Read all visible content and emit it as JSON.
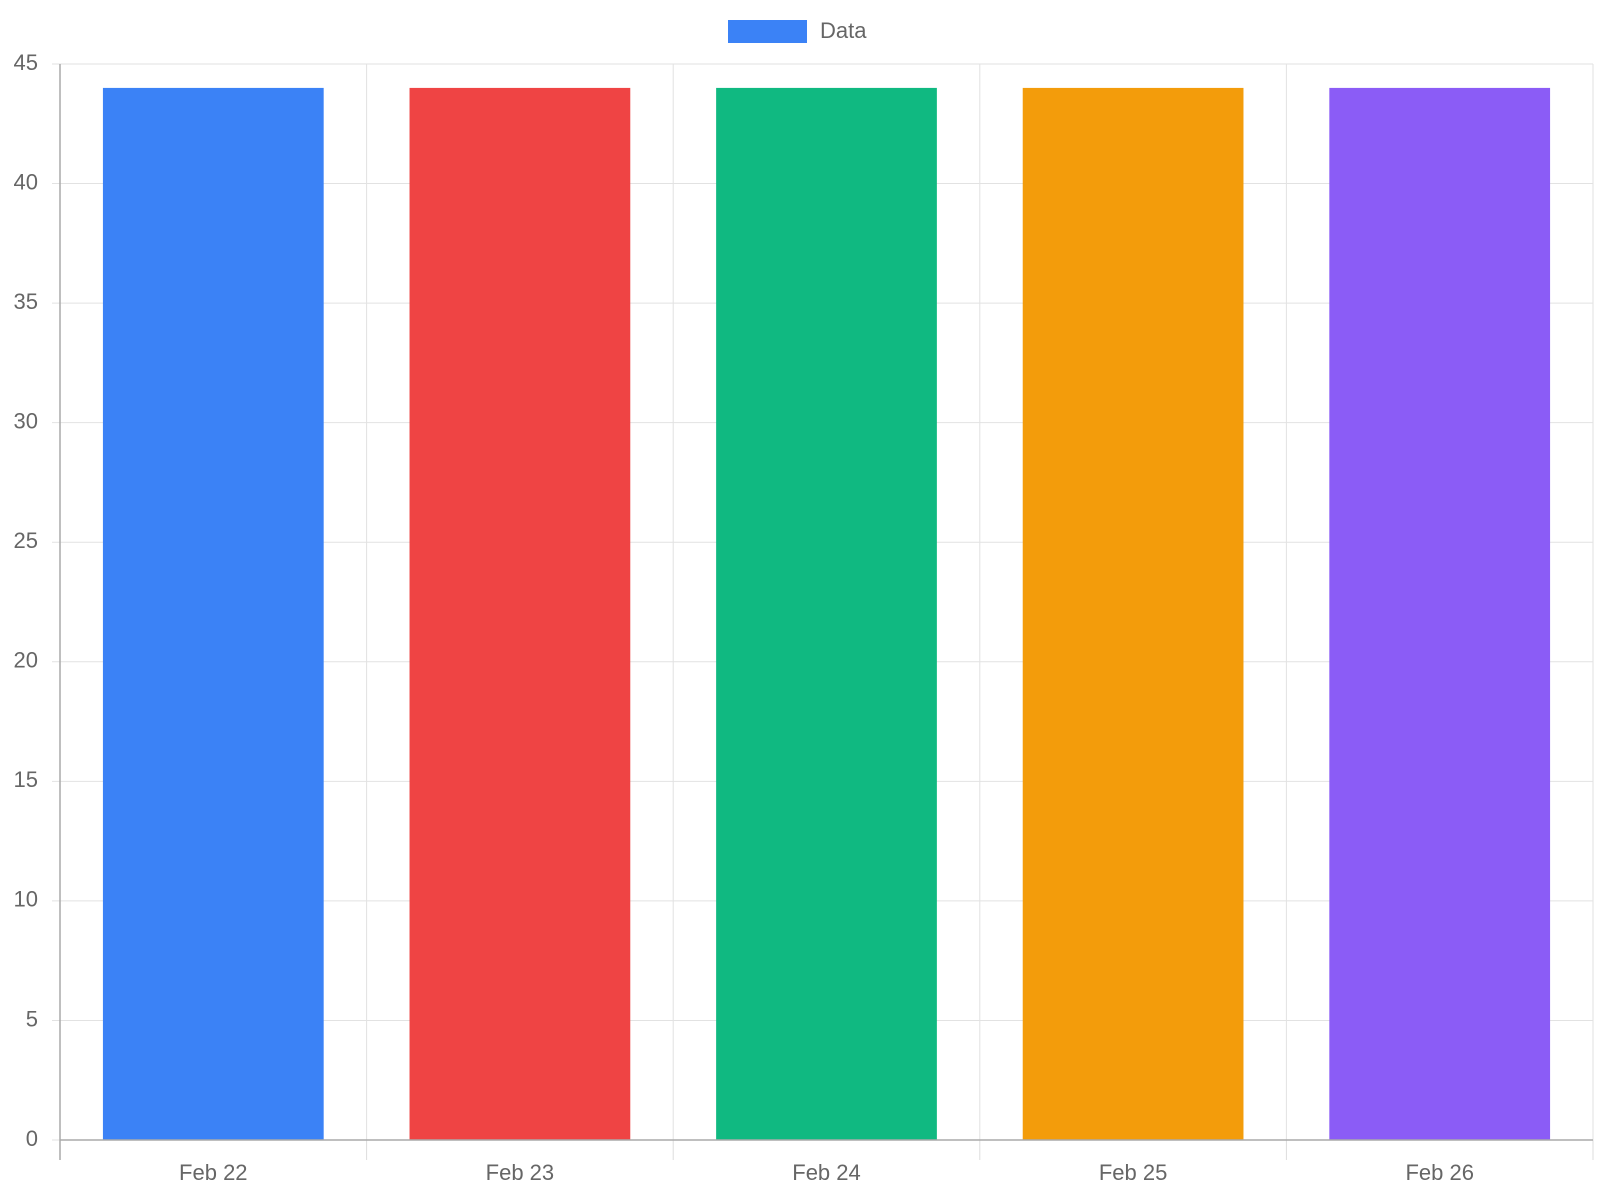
{
  "chart_data": {
    "type": "bar",
    "categories": [
      "Feb 22",
      "Feb 23",
      "Feb 24",
      "Feb 25",
      "Feb 26"
    ],
    "series": [
      {
        "name": "Data",
        "color": "#3b82f6",
        "colors": [
          "#3b82f6",
          "#ef4444",
          "#10b981",
          "#f39c0b",
          "#8b5cf6"
        ],
        "values": [
          44,
          44,
          44,
          44,
          44
        ]
      }
    ],
    "ylim": [
      0,
      45
    ],
    "yticks": [
      0,
      5,
      10,
      15,
      20,
      25,
      30,
      35,
      40,
      45
    ],
    "grid": true,
    "legend": "top"
  }
}
